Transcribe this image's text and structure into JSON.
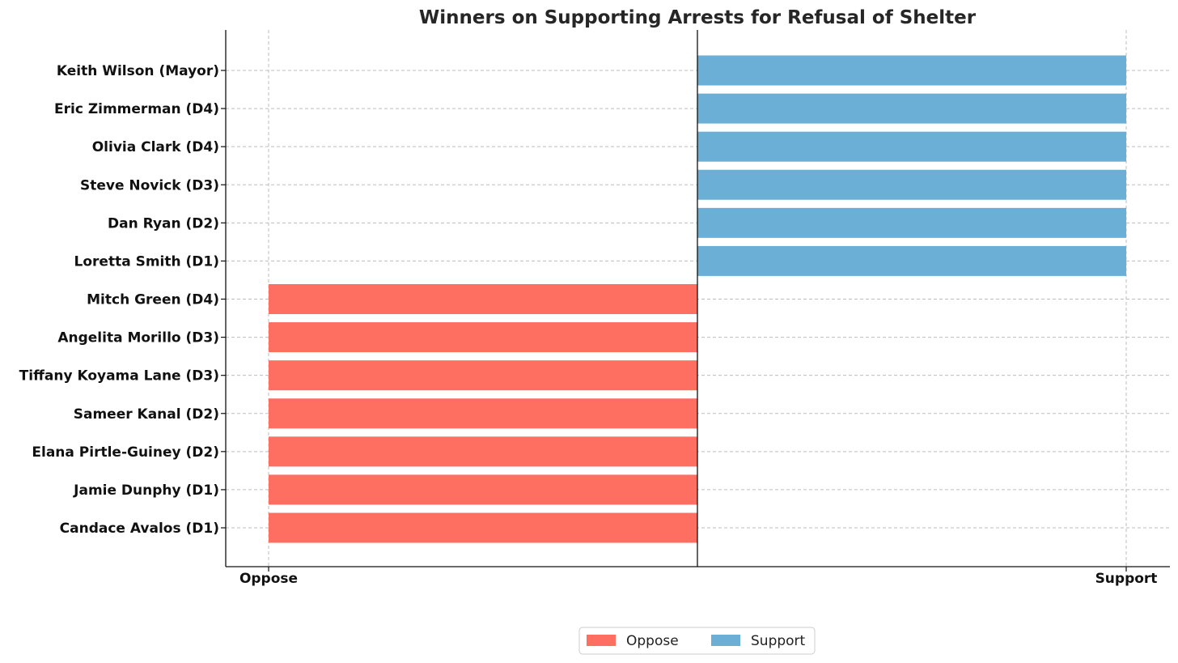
{
  "chart_data": {
    "type": "bar",
    "orientation": "horizontal",
    "title": "Winners on Supporting Arrests for Refusal of Shelter",
    "xlabel": "",
    "ylabel": "",
    "x_ticks": [
      {
        "value": -1,
        "label": "Oppose"
      },
      {
        "value": 1,
        "label": "Support"
      }
    ],
    "xlim": [
      -1.1,
      1.1
    ],
    "grid": true,
    "legend_position": "bottom-center",
    "categories": [
      "Candace Avalos (D1)",
      "Jamie Dunphy (D1)",
      "Elana Pirtle-Guiney (D2)",
      "Sameer Kanal (D2)",
      "Tiffany Koyama Lane (D3)",
      "Angelita Morillo (D3)",
      "Mitch Green (D4)",
      "Loretta Smith (D1)",
      "Dan Ryan (D2)",
      "Steve Novick (D3)",
      "Olivia Clark (D4)",
      "Eric Zimmerman (D4)",
      "Keith Wilson (Mayor)"
    ],
    "values": [
      -1,
      -1,
      -1,
      -1,
      -1,
      -1,
      -1,
      1,
      1,
      1,
      1,
      1,
      1
    ],
    "series": [
      {
        "name": "Oppose",
        "color": "#ff6f61"
      },
      {
        "name": "Support",
        "color": "#6baed6"
      }
    ]
  }
}
